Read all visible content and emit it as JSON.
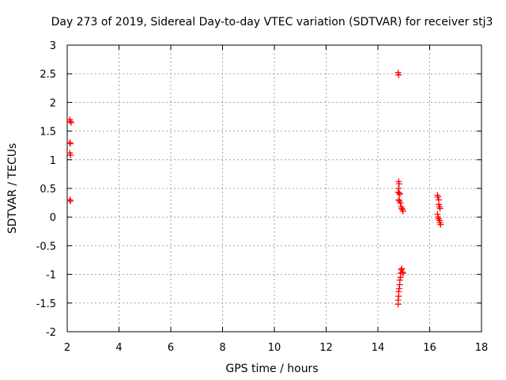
{
  "chart_data": {
    "type": "scatter",
    "title": "Day 273 of 2019, Sidereal Day-to-day VTEC variation (SDTVAR) for receiver stj3",
    "xlabel": "GPS time / hours",
    "ylabel": "SDTVAR / TECUs",
    "xlim": [
      2,
      18
    ],
    "ylim": [
      -2,
      3
    ],
    "xticks": [
      2,
      4,
      6,
      8,
      10,
      12,
      14,
      16,
      18
    ],
    "xtick_labels": [
      "2",
      "4",
      "6",
      "8",
      "10",
      "12",
      "14",
      "16",
      "18"
    ],
    "yticks": [
      -2,
      -1.5,
      -1,
      -0.5,
      0,
      0.5,
      1,
      1.5,
      2,
      2.5,
      3
    ],
    "ytick_labels": [
      "-2",
      "-1.5",
      "-1",
      "-0.5",
      "0",
      "0.5",
      "1",
      "1.5",
      "2",
      "2.5",
      "3"
    ],
    "grid": true,
    "marker": "+",
    "color": "#ff0000",
    "series": [
      {
        "name": "SDTVAR",
        "points": [
          {
            "x": 2.1,
            "y": 1.7
          },
          {
            "x": 2.12,
            "y": 1.67
          },
          {
            "x": 2.15,
            "y": 1.65
          },
          {
            "x": 2.1,
            "y": 1.3
          },
          {
            "x": 2.12,
            "y": 1.28
          },
          {
            "x": 2.1,
            "y": 1.12
          },
          {
            "x": 2.13,
            "y": 1.08
          },
          {
            "x": 2.1,
            "y": 0.3
          },
          {
            "x": 2.13,
            "y": 0.28
          },
          {
            "x": 14.78,
            "y": 2.52
          },
          {
            "x": 14.8,
            "y": 2.48
          },
          {
            "x": 14.8,
            "y": 0.62
          },
          {
            "x": 14.82,
            "y": 0.58
          },
          {
            "x": 14.8,
            "y": 0.5
          },
          {
            "x": 14.78,
            "y": 0.43
          },
          {
            "x": 14.82,
            "y": 0.42
          },
          {
            "x": 14.85,
            "y": 0.4
          },
          {
            "x": 14.8,
            "y": 0.3
          },
          {
            "x": 14.83,
            "y": 0.28
          },
          {
            "x": 14.87,
            "y": 0.25
          },
          {
            "x": 14.9,
            "y": 0.18
          },
          {
            "x": 14.92,
            "y": 0.15
          },
          {
            "x": 14.95,
            "y": 0.13
          },
          {
            "x": 14.97,
            "y": 0.1
          },
          {
            "x": 14.78,
            "y": -1.52
          },
          {
            "x": 14.78,
            "y": -1.45
          },
          {
            "x": 14.8,
            "y": -1.38
          },
          {
            "x": 14.8,
            "y": -1.3
          },
          {
            "x": 14.82,
            "y": -1.25
          },
          {
            "x": 14.84,
            "y": -1.18
          },
          {
            "x": 14.85,
            "y": -1.1
          },
          {
            "x": 14.87,
            "y": -1.05
          },
          {
            "x": 14.88,
            "y": -0.98
          },
          {
            "x": 14.9,
            "y": -0.92
          },
          {
            "x": 14.92,
            "y": -0.9
          },
          {
            "x": 14.95,
            "y": -0.96
          },
          {
            "x": 14.97,
            "y": -0.98
          },
          {
            "x": 16.3,
            "y": 0.38
          },
          {
            "x": 16.32,
            "y": 0.35
          },
          {
            "x": 16.35,
            "y": 0.3
          },
          {
            "x": 16.35,
            "y": 0.22
          },
          {
            "x": 16.38,
            "y": 0.18
          },
          {
            "x": 16.4,
            "y": 0.15
          },
          {
            "x": 16.3,
            "y": 0.05
          },
          {
            "x": 16.32,
            "y": 0.0
          },
          {
            "x": 16.35,
            "y": -0.03
          },
          {
            "x": 16.38,
            "y": -0.06
          },
          {
            "x": 16.4,
            "y": -0.1
          },
          {
            "x": 16.42,
            "y": -0.13
          }
        ]
      }
    ]
  }
}
